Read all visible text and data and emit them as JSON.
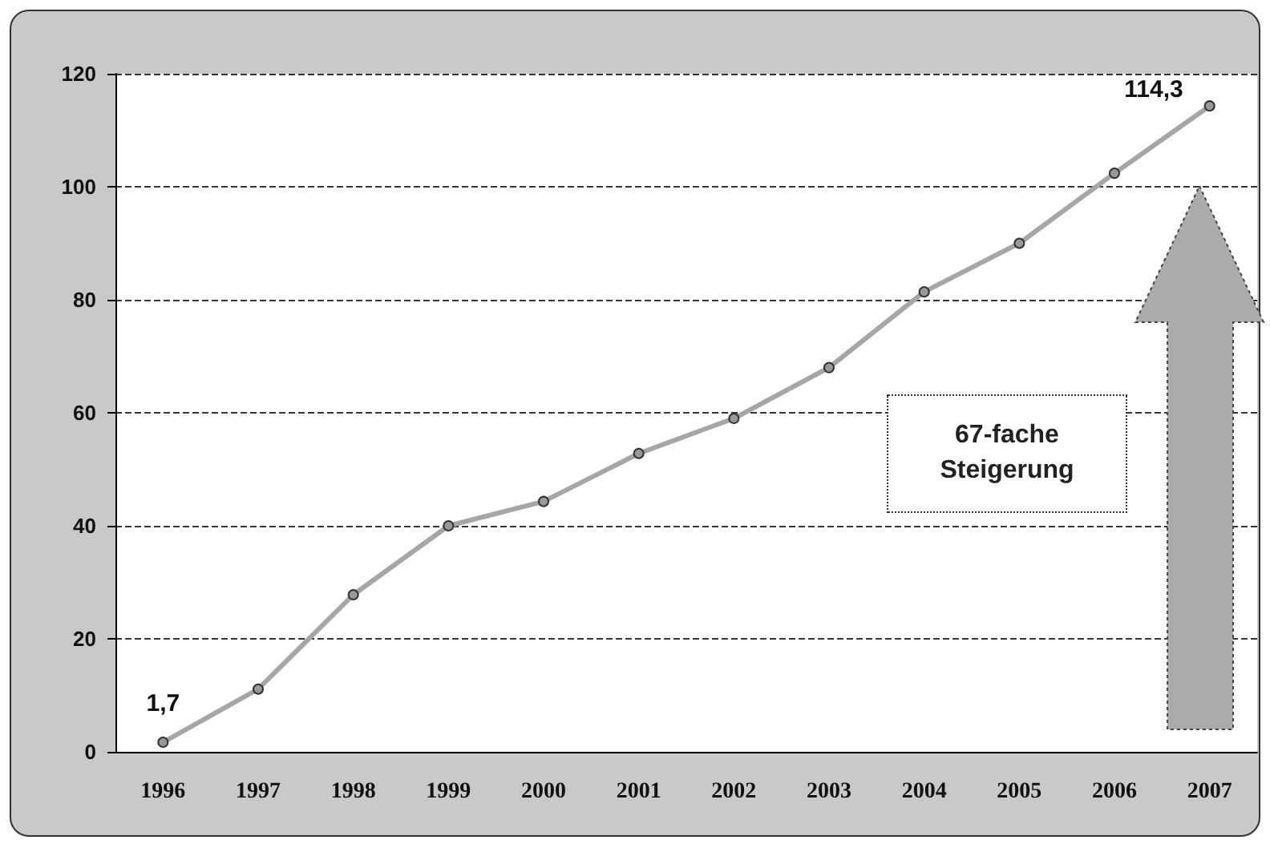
{
  "chart_data": {
    "type": "line",
    "categories": [
      "1996",
      "1997",
      "1998",
      "1999",
      "2000",
      "2001",
      "2002",
      "2003",
      "2004",
      "2005",
      "2006",
      "2007"
    ],
    "series": [
      {
        "color": "#a6a6a6",
        "values": [
          1.7,
          11.1,
          27.8,
          40,
          44.3,
          52.8,
          59,
          68,
          81.4,
          90,
          102.4,
          114.3
        ],
        "value_labels": [
          "1,7",
          null,
          null,
          null,
          null,
          null,
          null,
          null,
          null,
          null,
          null,
          "114,3"
        ]
      }
    ],
    "ylim": [
      0,
      120
    ],
    "yticks": [
      0,
      20,
      40,
      60,
      80,
      100,
      120
    ],
    "grid": "y",
    "marker": "circle",
    "line_style": "solid",
    "annotations": [
      "67-fache Steigerung"
    ]
  }
}
